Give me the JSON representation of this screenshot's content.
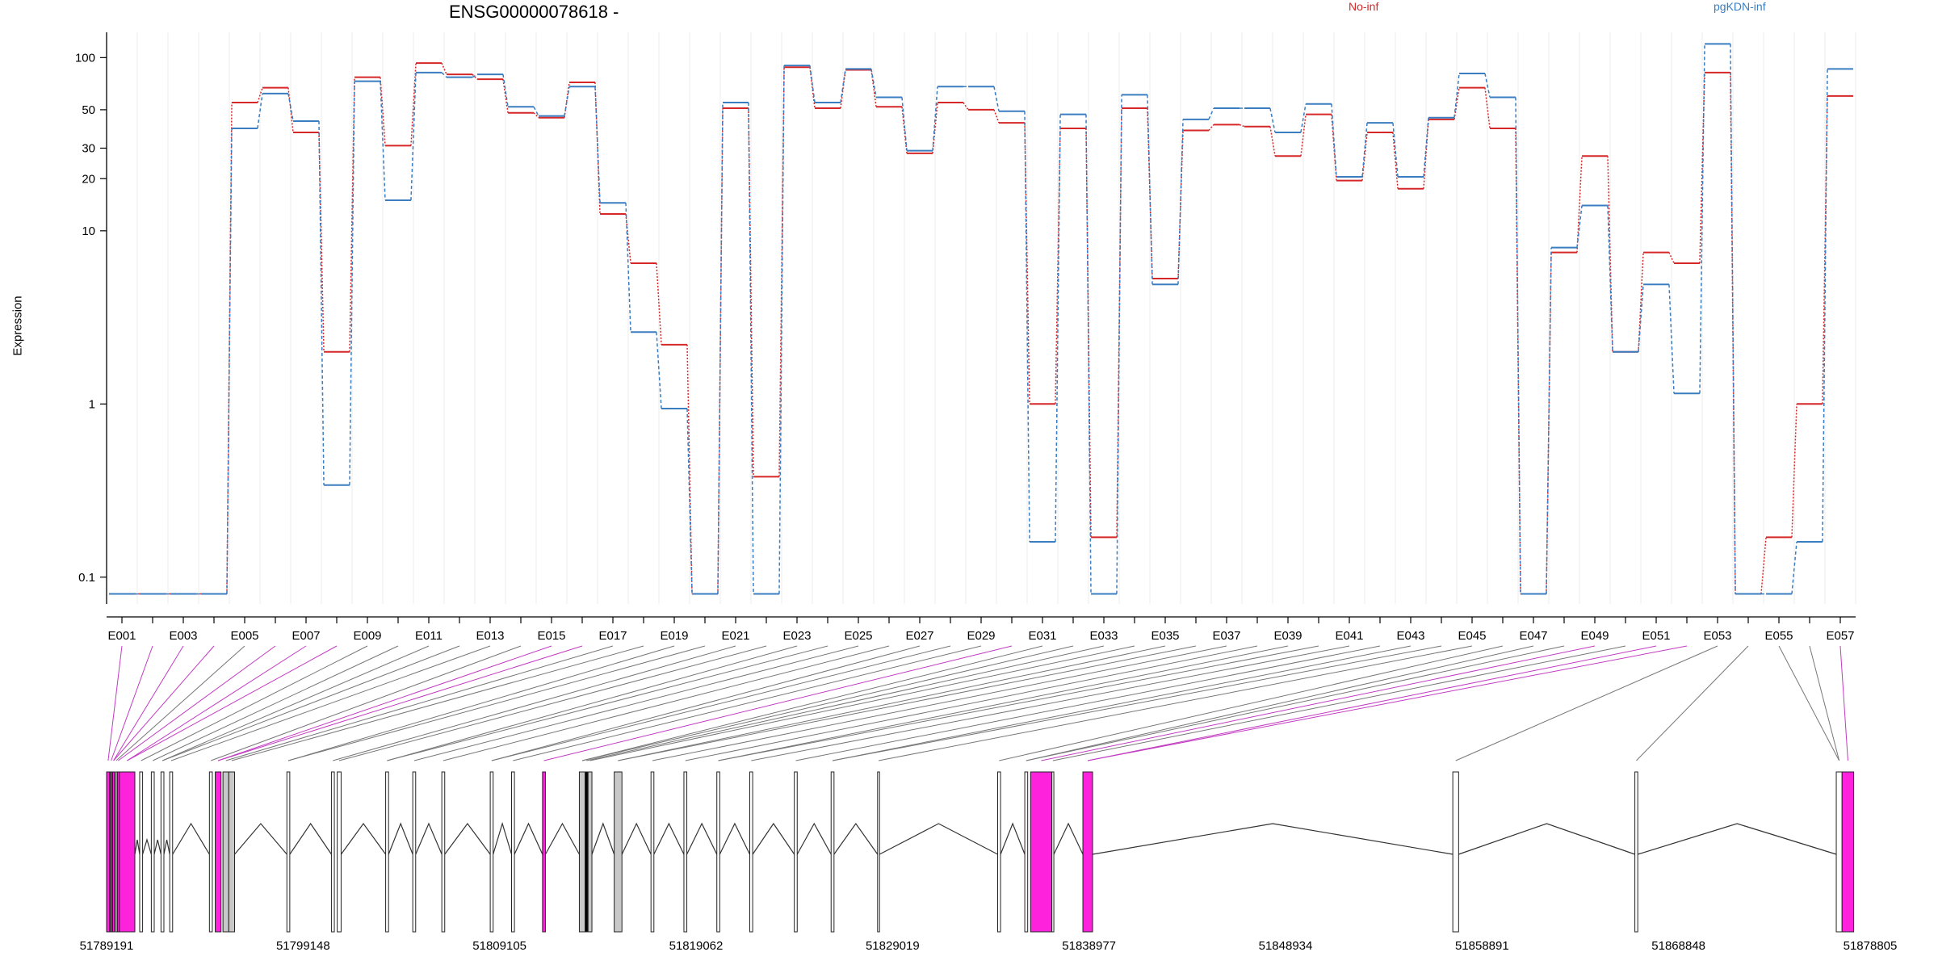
{
  "chart_data": {
    "type": "line",
    "title": "ENSG00000078618 -",
    "ylabel": "Expression",
    "xlabel": "",
    "yscale": "log",
    "ylim": [
      0.07,
      140
    ],
    "yticks": [
      0.1,
      1,
      10,
      20,
      30,
      50,
      100
    ],
    "ytick_labels": [
      "0.1",
      "1",
      "10",
      "20",
      "30",
      "50",
      "100"
    ],
    "categories": [
      "E001",
      "E002",
      "E003",
      "E004",
      "E005",
      "E006",
      "E007",
      "E008",
      "E009",
      "E010",
      "E011",
      "E012",
      "E013",
      "E014",
      "E015",
      "E016",
      "E017",
      "E018",
      "E019",
      "E020",
      "E021",
      "E022",
      "E023",
      "E024",
      "E025",
      "E026",
      "E027",
      "E028",
      "E029",
      "E030",
      "E031",
      "E032",
      "E033",
      "E034",
      "E035",
      "E036",
      "E037",
      "E038",
      "E039",
      "E040",
      "E041",
      "E042",
      "E043",
      "E044",
      "E045",
      "E046",
      "E047",
      "E048",
      "E049",
      "E050",
      "E051",
      "E052",
      "E053",
      "E054",
      "E055",
      "E056",
      "E057"
    ],
    "xtick_labels_shown": [
      "E001",
      "E003",
      "E005",
      "E007",
      "E009",
      "E011",
      "E013",
      "E015",
      "E017",
      "E019",
      "E021",
      "E023",
      "E025",
      "E027",
      "E029",
      "E031",
      "E033",
      "E035",
      "E037",
      "E039",
      "E041",
      "E043",
      "E045",
      "E047",
      "E049",
      "E051",
      "E053",
      "E055",
      "E057"
    ],
    "series": [
      {
        "name": "No-inf",
        "color": "#d62728",
        "dash": "dotted-steps",
        "values": [
          0.08,
          0.08,
          0.08,
          0.08,
          55,
          67,
          37,
          2,
          77,
          31,
          93,
          80,
          75,
          48,
          45,
          72,
          12.5,
          6.5,
          2.2,
          0.08,
          51,
          0.38,
          88,
          51,
          85,
          52,
          28,
          55,
          50,
          42,
          1,
          39,
          0.17,
          51,
          5.3,
          38,
          41,
          40,
          27,
          47,
          19.5,
          37,
          17.5,
          44,
          67,
          39,
          0.08,
          7.5,
          27,
          2,
          7.5,
          6.5,
          82,
          0.08,
          0.17,
          1,
          60
        ]
      },
      {
        "name": "pgKDN-inf",
        "color": "#3a7dc0",
        "dash": "dashed-steps",
        "values": [
          0.08,
          0.08,
          0.08,
          0.08,
          39,
          62,
          43,
          0.34,
          73,
          15,
          82,
          77,
          80,
          52,
          46,
          68,
          14.5,
          2.6,
          0.94,
          0.08,
          55,
          0.08,
          90,
          55,
          86,
          59,
          29,
          68,
          68,
          49,
          0.16,
          47,
          0.08,
          61,
          4.9,
          44,
          51,
          51,
          37,
          54,
          20.5,
          42,
          20.5,
          45,
          81,
          59,
          0.08,
          8,
          14,
          2,
          4.9,
          1.15,
          120,
          0.08,
          0.08,
          0.16,
          86
        ]
      }
    ],
    "legend": {
      "placement": "top-right",
      "entries": [
        "No-inf",
        "pgKDN-inf"
      ]
    },
    "genomic_axis": {
      "tick_labels": [
        "51789191",
        "51799148",
        "51809105",
        "51819062",
        "51829019",
        "51838977",
        "51848934",
        "51858891",
        "51868848",
        "51878805"
      ],
      "start": 51789191,
      "end": 51880500,
      "features": [
        {
          "s": 51789191,
          "e": 51789350,
          "fill": "#ff22dd"
        },
        {
          "s": 51789380,
          "e": 51789470,
          "fill": "#ff22dd"
        },
        {
          "s": 51789500,
          "e": 51789600,
          "fill": "#ff22dd"
        },
        {
          "s": 51789650,
          "e": 51789720,
          "fill": "#ffffff"
        },
        {
          "s": 51789750,
          "e": 51789830,
          "fill": "#ff22dd"
        },
        {
          "s": 51789850,
          "e": 51790650,
          "fill": "#ff22dd"
        },
        {
          "s": 51790900,
          "e": 51791050,
          "fill": "#ffffff"
        },
        {
          "s": 51791500,
          "e": 51791650,
          "fill": "#ffffff"
        },
        {
          "s": 51792000,
          "e": 51792150,
          "fill": "#ffffff"
        },
        {
          "s": 51792450,
          "e": 51792600,
          "fill": "#ffffff"
        },
        {
          "s": 51794500,
          "e": 51794650,
          "fill": "#ffffff"
        },
        {
          "s": 51794800,
          "e": 51795100,
          "fill": "#ff22dd"
        },
        {
          "s": 51795200,
          "e": 51795500,
          "fill": "#c8c8c8"
        },
        {
          "s": 51795500,
          "e": 51795800,
          "fill": "#c8c8c8"
        },
        {
          "s": 51798500,
          "e": 51798650,
          "fill": "#ffffff"
        },
        {
          "s": 51800800,
          "e": 51800950,
          "fill": "#ffffff"
        },
        {
          "s": 51801100,
          "e": 51801300,
          "fill": "#ffffff"
        },
        {
          "s": 51803600,
          "e": 51803750,
          "fill": "#ffffff"
        },
        {
          "s": 51805000,
          "e": 51805150,
          "fill": "#ffffff"
        },
        {
          "s": 51806500,
          "e": 51806650,
          "fill": "#ffffff"
        },
        {
          "s": 51809000,
          "e": 51809150,
          "fill": "#ffffff"
        },
        {
          "s": 51810100,
          "e": 51810250,
          "fill": "#ffffff"
        },
        {
          "s": 51811700,
          "e": 51811850,
          "fill": "#ff22dd"
        },
        {
          "s": 51813600,
          "e": 51813900,
          "fill": "#c8c8c8"
        },
        {
          "s": 51813900,
          "e": 51814050,
          "fill": "#000000"
        },
        {
          "s": 51814050,
          "e": 51814250,
          "fill": "#c8c8c8"
        },
        {
          "s": 51815400,
          "e": 51815800,
          "fill": "#c8c8c8"
        },
        {
          "s": 51817300,
          "e": 51817450,
          "fill": "#ffffff"
        },
        {
          "s": 51819000,
          "e": 51819150,
          "fill": "#ffffff"
        },
        {
          "s": 51820700,
          "e": 51820850,
          "fill": "#ffffff"
        },
        {
          "s": 51822400,
          "e": 51822550,
          "fill": "#ffffff"
        },
        {
          "s": 51824700,
          "e": 51824850,
          "fill": "#ffffff"
        },
        {
          "s": 51826600,
          "e": 51826750,
          "fill": "#ffffff"
        },
        {
          "s": 51829000,
          "e": 51829100,
          "fill": "#ffffff"
        },
        {
          "s": 51835200,
          "e": 51835350,
          "fill": "#ffffff"
        },
        {
          "s": 51836600,
          "e": 51836750,
          "fill": "#ffffff"
        },
        {
          "s": 51836900,
          "e": 51838000,
          "fill": "#ff22dd"
        },
        {
          "s": 51838000,
          "e": 51838100,
          "fill": "#ffffff"
        },
        {
          "s": 51839600,
          "e": 51840100,
          "fill": "#ff22dd"
        },
        {
          "s": 51858700,
          "e": 51859000,
          "fill": "#ffffff"
        },
        {
          "s": 51868100,
          "e": 51868250,
          "fill": "#ffffff"
        },
        {
          "s": 51878500,
          "e": 51878800,
          "fill": "#ffffff"
        },
        {
          "s": 51878800,
          "e": 51879400,
          "fill": "#ff22dd"
        }
      ],
      "introns": [
        [
          51790650,
          51790900
        ],
        [
          51791050,
          51791500
        ],
        [
          51791650,
          51792000
        ],
        [
          51792150,
          51792450
        ],
        [
          51792600,
          51794500
        ],
        [
          51795800,
          51798500
        ],
        [
          51798650,
          51800800
        ],
        [
          51801300,
          51803600
        ],
        [
          51803750,
          51805000
        ],
        [
          51805150,
          51806500
        ],
        [
          51806650,
          51809000
        ],
        [
          51809150,
          51810100
        ],
        [
          51810250,
          51811700
        ],
        [
          51811850,
          51813600
        ],
        [
          51814250,
          51815400
        ],
        [
          51815800,
          51817300
        ],
        [
          51817450,
          51819000
        ],
        [
          51819150,
          51820700
        ],
        [
          51820850,
          51822400
        ],
        [
          51822550,
          51824700
        ],
        [
          51824850,
          51826600
        ],
        [
          51826750,
          51829000
        ],
        [
          51829100,
          51835200
        ],
        [
          51835350,
          51836600
        ],
        [
          51838100,
          51839600
        ],
        [
          51840100,
          51858700
        ],
        [
          51859000,
          51868100
        ],
        [
          51868250,
          51878500
        ]
      ]
    }
  }
}
